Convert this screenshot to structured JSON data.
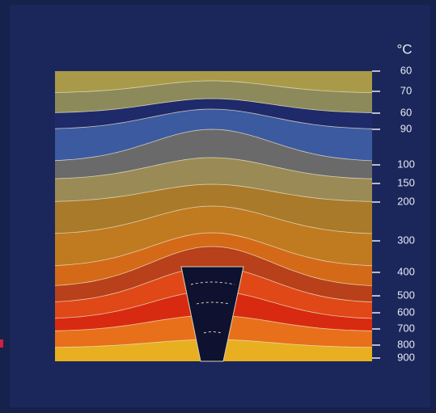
{
  "scale": {
    "unit": "°C",
    "labels": [
      "60",
      "70",
      "60",
      "90",
      "100",
      "150",
      "200",
      "300",
      "400",
      "500",
      "600",
      "700",
      "800",
      "900"
    ]
  }
}
